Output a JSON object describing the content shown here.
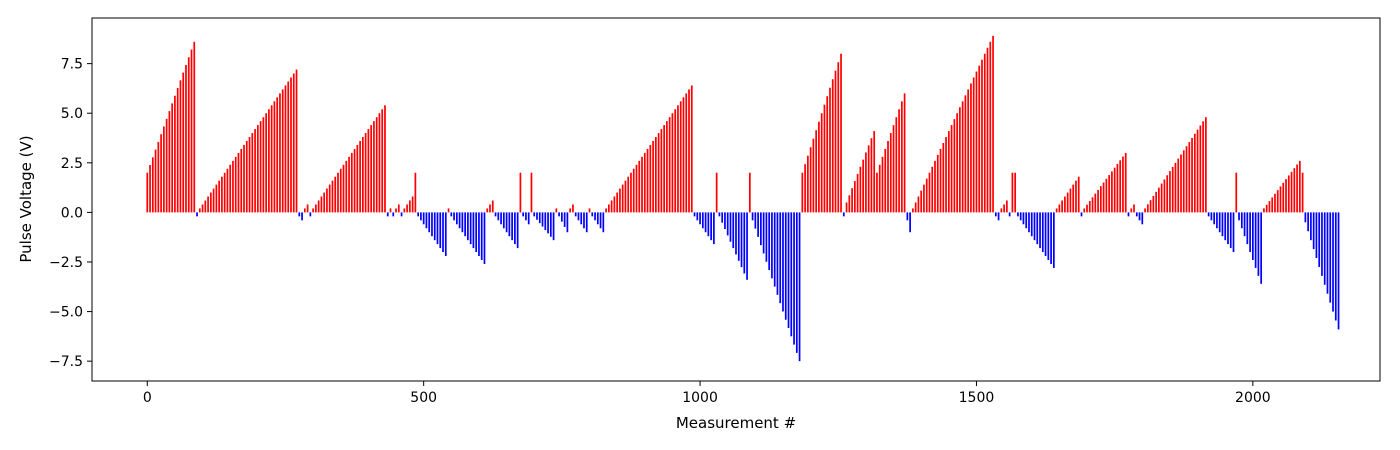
{
  "chart_data": {
    "type": "bar",
    "title": "",
    "xlabel": "Measurement #",
    "ylabel": "Pulse Voltage (V)",
    "xlim": [
      -100,
      2230
    ],
    "ylim": [
      -8.5,
      9.8
    ],
    "xticks": [
      0,
      500,
      1000,
      1500,
      2000
    ],
    "xtick_labels": [
      "0",
      "500",
      "1000",
      "1500",
      "2000"
    ],
    "yticks": [
      -7.5,
      -5.0,
      -2.5,
      0.0,
      2.5,
      5.0,
      7.5
    ],
    "ytick_labels": [
      "−7.5",
      "−5.0",
      "−2.5",
      "0.0",
      "2.5",
      "5.0",
      "7.5"
    ],
    "grid": false,
    "legend": "none",
    "bar_spacing": 5,
    "positive_color": "#ff0000",
    "negative_color": "#0000ff",
    "segments": [
      {
        "kind": "ramp",
        "x_start": 0,
        "x_end": 85,
        "y_start": 2.0,
        "y_end": 8.6
      },
      {
        "kind": "ramp",
        "x_start": 90,
        "x_end": 90,
        "y_start": -0.2,
        "y_end": -0.2
      },
      {
        "kind": "ramp",
        "x_start": 95,
        "x_end": 270,
        "y_start": 0.2,
        "y_end": 7.2
      },
      {
        "kind": "ramp",
        "x_start": 275,
        "x_end": 280,
        "y_start": -0.2,
        "y_end": -0.4
      },
      {
        "kind": "ramp",
        "x_start": 285,
        "x_end": 290,
        "y_start": 0.2,
        "y_end": 0.4
      },
      {
        "kind": "ramp",
        "x_start": 295,
        "x_end": 295,
        "y_start": -0.2,
        "y_end": -0.2
      },
      {
        "kind": "ramp",
        "x_start": 300,
        "x_end": 430,
        "y_start": 0.2,
        "y_end": 5.4
      },
      {
        "kind": "ramp",
        "x_start": 435,
        "x_end": 435,
        "y_start": -0.2,
        "y_end": -0.2
      },
      {
        "kind": "ramp",
        "x_start": 440,
        "x_end": 440,
        "y_start": 0.2,
        "y_end": 0.2
      },
      {
        "kind": "ramp",
        "x_start": 445,
        "x_end": 445,
        "y_start": -0.2,
        "y_end": -0.2
      },
      {
        "kind": "ramp",
        "x_start": 450,
        "x_end": 455,
        "y_start": 0.2,
        "y_end": 0.4
      },
      {
        "kind": "ramp",
        "x_start": 460,
        "x_end": 460,
        "y_start": -0.2,
        "y_end": -0.2
      },
      {
        "kind": "ramp",
        "x_start": 465,
        "x_end": 480,
        "y_start": 0.2,
        "y_end": 0.8
      },
      {
        "kind": "ramp",
        "x_start": 485,
        "x_end": 485,
        "y_start": 2.0,
        "y_end": 2.0
      },
      {
        "kind": "ramp",
        "x_start": 490,
        "x_end": 540,
        "y_start": -0.2,
        "y_end": -2.2
      },
      {
        "kind": "ramp",
        "x_start": 545,
        "x_end": 545,
        "y_start": 0.2,
        "y_end": 0.2
      },
      {
        "kind": "ramp",
        "x_start": 550,
        "x_end": 610,
        "y_start": -0.2,
        "y_end": -2.6
      },
      {
        "kind": "ramp",
        "x_start": 615,
        "x_end": 625,
        "y_start": 0.2,
        "y_end": 0.6
      },
      {
        "kind": "ramp",
        "x_start": 630,
        "x_end": 670,
        "y_start": -0.2,
        "y_end": -1.8
      },
      {
        "kind": "ramp",
        "x_start": 675,
        "x_end": 675,
        "y_start": 2.0,
        "y_end": 2.0
      },
      {
        "kind": "ramp",
        "x_start": 680,
        "x_end": 690,
        "y_start": -0.2,
        "y_end": -0.6
      },
      {
        "kind": "ramp",
        "x_start": 695,
        "x_end": 695,
        "y_start": 2.0,
        "y_end": 2.0
      },
      {
        "kind": "ramp",
        "x_start": 700,
        "x_end": 735,
        "y_start": -0.2,
        "y_end": -1.4
      },
      {
        "kind": "ramp",
        "x_start": 740,
        "x_end": 740,
        "y_start": 0.2,
        "y_end": 0.2
      },
      {
        "kind": "ramp",
        "x_start": 745,
        "x_end": 760,
        "y_start": -0.2,
        "y_end": -1.0
      },
      {
        "kind": "ramp",
        "x_start": 765,
        "x_end": 770,
        "y_start": 0.2,
        "y_end": 0.4
      },
      {
        "kind": "ramp",
        "x_start": 775,
        "x_end": 795,
        "y_start": -0.2,
        "y_end": -1.0
      },
      {
        "kind": "ramp",
        "x_start": 800,
        "x_end": 800,
        "y_start": 0.2,
        "y_end": 0.2
      },
      {
        "kind": "ramp",
        "x_start": 805,
        "x_end": 825,
        "y_start": -0.2,
        "y_end": -1.0
      },
      {
        "kind": "ramp",
        "x_start": 830,
        "x_end": 985,
        "y_start": 0.2,
        "y_end": 6.4
      },
      {
        "kind": "ramp",
        "x_start": 990,
        "x_end": 1025,
        "y_start": -0.2,
        "y_end": -1.6
      },
      {
        "kind": "ramp",
        "x_start": 1030,
        "x_end": 1030,
        "y_start": 2.0,
        "y_end": 2.0
      },
      {
        "kind": "ramp",
        "x_start": 1035,
        "x_end": 1085,
        "y_start": -0.2,
        "y_end": -3.4
      },
      {
        "kind": "ramp",
        "x_start": 1090,
        "x_end": 1090,
        "y_start": 2.0,
        "y_end": 2.0
      },
      {
        "kind": "ramp",
        "x_start": 1095,
        "x_end": 1180,
        "y_start": -0.4,
        "y_end": -7.5
      },
      {
        "kind": "ramp",
        "x_start": 1185,
        "x_end": 1255,
        "y_start": 2.0,
        "y_end": 8.0
      },
      {
        "kind": "ramp",
        "x_start": 1260,
        "x_end": 1260,
        "y_start": -0.2,
        "y_end": -0.2
      },
      {
        "kind": "ramp",
        "x_start": 1265,
        "x_end": 1315,
        "y_start": 0.5,
        "y_end": 4.1
      },
      {
        "kind": "ramp",
        "x_start": 1320,
        "x_end": 1370,
        "y_start": 2.0,
        "y_end": 6.0
      },
      {
        "kind": "ramp",
        "x_start": 1375,
        "x_end": 1380,
        "y_start": -0.4,
        "y_end": -1.0
      },
      {
        "kind": "ramp",
        "x_start": 1385,
        "x_end": 1530,
        "y_start": 0.2,
        "y_end": 8.9
      },
      {
        "kind": "ramp",
        "x_start": 1535,
        "x_end": 1540,
        "y_start": -0.2,
        "y_end": -0.4
      },
      {
        "kind": "ramp",
        "x_start": 1545,
        "x_end": 1555,
        "y_start": 0.2,
        "y_end": 0.6
      },
      {
        "kind": "ramp",
        "x_start": 1560,
        "x_end": 1560,
        "y_start": -0.2,
        "y_end": -0.2
      },
      {
        "kind": "ramp",
        "x_start": 1565,
        "x_end": 1570,
        "y_start": 2.0,
        "y_end": 2.0
      },
      {
        "kind": "ramp",
        "x_start": 1575,
        "x_end": 1640,
        "y_start": -0.2,
        "y_end": -2.8
      },
      {
        "kind": "ramp",
        "x_start": 1645,
        "x_end": 1685,
        "y_start": 0.2,
        "y_end": 1.8
      },
      {
        "kind": "ramp",
        "x_start": 1690,
        "x_end": 1690,
        "y_start": -0.2,
        "y_end": -0.2
      },
      {
        "kind": "ramp",
        "x_start": 1695,
        "x_end": 1770,
        "y_start": 0.2,
        "y_end": 3.0
      },
      {
        "kind": "ramp",
        "x_start": 1775,
        "x_end": 1775,
        "y_start": -0.2,
        "y_end": -0.2
      },
      {
        "kind": "ramp",
        "x_start": 1780,
        "x_end": 1785,
        "y_start": 0.2,
        "y_end": 0.4
      },
      {
        "kind": "ramp",
        "x_start": 1790,
        "x_end": 1800,
        "y_start": -0.2,
        "y_end": -0.6
      },
      {
        "kind": "ramp",
        "x_start": 1805,
        "x_end": 1915,
        "y_start": 0.2,
        "y_end": 4.8
      },
      {
        "kind": "ramp",
        "x_start": 1920,
        "x_end": 1965,
        "y_start": -0.2,
        "y_end": -2.0
      },
      {
        "kind": "ramp",
        "x_start": 1970,
        "x_end": 1970,
        "y_start": 2.0,
        "y_end": 2.0
      },
      {
        "kind": "ramp",
        "x_start": 1975,
        "x_end": 2015,
        "y_start": -0.4,
        "y_end": -3.6
      },
      {
        "kind": "ramp",
        "x_start": 2020,
        "x_end": 2085,
        "y_start": 0.2,
        "y_end": 2.6
      },
      {
        "kind": "ramp",
        "x_start": 2090,
        "x_end": 2090,
        "y_start": 2.0,
        "y_end": 2.0
      },
      {
        "kind": "ramp",
        "x_start": 2095,
        "x_end": 2155,
        "y_start": -0.5,
        "y_end": -5.9
      }
    ]
  }
}
